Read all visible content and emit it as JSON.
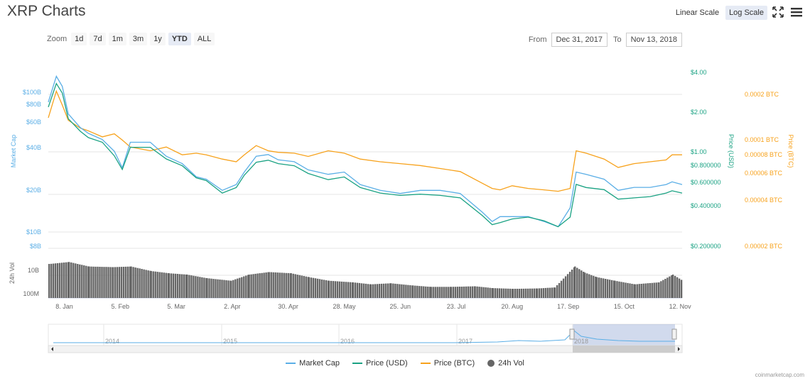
{
  "title": "XRP Charts",
  "scale": {
    "linear_label": "Linear Scale",
    "log_label": "Log Scale",
    "active": "log"
  },
  "icons": {
    "fullscreen": "expand-icon",
    "menu": "hamburger-menu-icon"
  },
  "zoom": {
    "label": "Zoom",
    "buttons": [
      "1d",
      "7d",
      "1m",
      "3m",
      "1y",
      "YTD",
      "ALL"
    ],
    "active": "YTD"
  },
  "range": {
    "from_label": "From",
    "from_value": "Dec 31, 2017",
    "to_label": "To",
    "to_value": "Nov 13, 2018"
  },
  "colors": {
    "market_cap": "#5aaee6",
    "price_usd": "#1aa283",
    "price_btc": "#f7a21c",
    "vol": "#666666"
  },
  "chart_data": {
    "type": "line",
    "scale": "log",
    "grid": true,
    "legend_position": "bottom",
    "x_labels": [
      "8. Jan",
      "5. Feb",
      "5. Mar",
      "2. Apr",
      "30. Apr",
      "28. May",
      "25. Jun",
      "23. Jul",
      "20. Aug",
      "17. Sep",
      "15. Oct",
      "12. Nov"
    ],
    "axes": {
      "market_cap": {
        "label": "Market Cap",
        "ticks": [
          "$100B",
          "$80B",
          "$60B",
          "$40B",
          "$20B",
          "$10B",
          "$8B"
        ]
      },
      "price_usd": {
        "label": "Price (USD)",
        "ticks": [
          "$4.00",
          "$2.00",
          "$1.00",
          "$0.800000",
          "$0.600000",
          "$0.400000",
          "$0.200000"
        ]
      },
      "price_btc": {
        "label": "Price (BTC)",
        "ticks": [
          "0.0002 BTC",
          "0.0001 BTC",
          "0.00008 BTC",
          "0.00006 BTC",
          "0.00004 BTC",
          "0.00002 BTC"
        ]
      },
      "volume": {
        "label": "24h Vol",
        "ticks": [
          "10B",
          "100M"
        ]
      }
    },
    "series": [
      {
        "name": "Market Cap",
        "key": "mcap",
        "axis": "market_cap",
        "unit": "USD billions",
        "x": [
          "2017-12-31",
          "2018-01-04",
          "2018-01-07",
          "2018-01-10",
          "2018-01-16",
          "2018-01-20",
          "2018-01-27",
          "2018-02-02",
          "2018-02-06",
          "2018-02-10",
          "2018-02-20",
          "2018-02-28",
          "2018-03-08",
          "2018-03-15",
          "2018-03-20",
          "2018-03-28",
          "2018-04-04",
          "2018-04-08",
          "2018-04-14",
          "2018-04-20",
          "2018-04-25",
          "2018-05-03",
          "2018-05-10",
          "2018-05-20",
          "2018-05-28",
          "2018-06-05",
          "2018-06-15",
          "2018-06-25",
          "2018-07-05",
          "2018-07-15",
          "2018-07-25",
          "2018-08-05",
          "2018-08-10",
          "2018-08-14",
          "2018-08-20",
          "2018-08-28",
          "2018-09-05",
          "2018-09-12",
          "2018-09-18",
          "2018-09-21",
          "2018-09-26",
          "2018-10-05",
          "2018-10-12",
          "2018-10-20",
          "2018-10-28",
          "2018-11-05",
          "2018-11-08",
          "2018-11-13"
        ],
        "y": [
          85,
          130,
          110,
          70,
          56,
          51,
          46,
          38,
          29,
          44,
          44,
          35,
          31,
          25,
          24,
          20,
          22,
          27,
          35,
          36,
          33,
          32,
          28,
          26,
          27,
          22,
          20,
          19,
          20,
          20,
          19,
          14,
          12,
          13,
          13,
          13,
          12,
          11,
          15,
          27,
          26,
          24,
          20,
          21,
          21,
          22,
          23,
          22
        ]
      },
      {
        "name": "Price (USD)",
        "key": "usd",
        "axis": "price_usd",
        "unit": "USD",
        "x": [
          "2017-12-31",
          "2018-01-04",
          "2018-01-07",
          "2018-01-10",
          "2018-01-16",
          "2018-01-20",
          "2018-01-27",
          "2018-02-02",
          "2018-02-06",
          "2018-02-10",
          "2018-02-20",
          "2018-02-28",
          "2018-03-08",
          "2018-03-15",
          "2018-03-20",
          "2018-03-28",
          "2018-04-04",
          "2018-04-08",
          "2018-04-14",
          "2018-04-20",
          "2018-04-25",
          "2018-05-03",
          "2018-05-10",
          "2018-05-20",
          "2018-05-28",
          "2018-06-05",
          "2018-06-15",
          "2018-06-25",
          "2018-07-05",
          "2018-07-15",
          "2018-07-25",
          "2018-08-05",
          "2018-08-10",
          "2018-08-14",
          "2018-08-20",
          "2018-08-28",
          "2018-09-05",
          "2018-09-12",
          "2018-09-18",
          "2018-09-21",
          "2018-09-26",
          "2018-10-05",
          "2018-10-12",
          "2018-10-20",
          "2018-10-28",
          "2018-11-05",
          "2018-11-08",
          "2018-11-13"
        ],
        "y": [
          2.2,
          3.3,
          2.8,
          1.8,
          1.45,
          1.3,
          1.2,
          0.95,
          0.75,
          1.1,
          1.1,
          0.9,
          0.8,
          0.65,
          0.62,
          0.5,
          0.55,
          0.68,
          0.85,
          0.88,
          0.83,
          0.8,
          0.7,
          0.63,
          0.66,
          0.55,
          0.5,
          0.48,
          0.49,
          0.48,
          0.46,
          0.34,
          0.29,
          0.3,
          0.32,
          0.33,
          0.31,
          0.28,
          0.33,
          0.58,
          0.55,
          0.53,
          0.45,
          0.46,
          0.47,
          0.5,
          0.52,
          0.5
        ]
      },
      {
        "name": "Price (BTC)",
        "key": "btc",
        "axis": "price_btc",
        "unit": "BTC",
        "x": [
          "2017-12-31",
          "2018-01-04",
          "2018-01-07",
          "2018-01-10",
          "2018-01-16",
          "2018-01-20",
          "2018-01-27",
          "2018-02-02",
          "2018-02-06",
          "2018-02-10",
          "2018-02-20",
          "2018-02-28",
          "2018-03-08",
          "2018-03-15",
          "2018-03-20",
          "2018-03-28",
          "2018-04-04",
          "2018-04-08",
          "2018-04-14",
          "2018-04-20",
          "2018-04-25",
          "2018-05-03",
          "2018-05-10",
          "2018-05-20",
          "2018-05-28",
          "2018-06-05",
          "2018-06-15",
          "2018-06-25",
          "2018-07-05",
          "2018-07-15",
          "2018-07-25",
          "2018-08-05",
          "2018-08-10",
          "2018-08-14",
          "2018-08-20",
          "2018-08-28",
          "2018-09-05",
          "2018-09-12",
          "2018-09-18",
          "2018-09-21",
          "2018-09-26",
          "2018-10-05",
          "2018-10-12",
          "2018-10-20",
          "2018-10-28",
          "2018-11-05",
          "2018-11-08",
          "2018-11-13"
        ],
        "y": [
          0.00014,
          0.00021,
          0.00017,
          0.000135,
          0.00012,
          0.000115,
          0.000105,
          0.00011,
          0.0001,
          9e-05,
          8.5e-05,
          9e-05,
          8e-05,
          8.2e-05,
          8e-05,
          7.5e-05,
          7.2e-05,
          8e-05,
          9.2e-05,
          8.5e-05,
          8.3e-05,
          8.2e-05,
          7.8e-05,
          8.5e-05,
          8.2e-05,
          7.5e-05,
          7.2e-05,
          7e-05,
          6.8e-05,
          6.5e-05,
          6.2e-05,
          5.2e-05,
          4.8e-05,
          4.7e-05,
          5e-05,
          4.8e-05,
          4.7e-05,
          4.6e-05,
          4.8e-05,
          8.5e-05,
          8.2e-05,
          7.5e-05,
          6.6e-05,
          7e-05,
          7.2e-05,
          7.4e-05,
          8e-05,
          8e-05
        ]
      },
      {
        "name": "24h Vol",
        "key": "vol",
        "axis": "volume",
        "unit": "USD",
        "x": [
          "2017-12-31",
          "2018-01-10",
          "2018-01-20",
          "2018-02-01",
          "2018-02-10",
          "2018-02-20",
          "2018-03-01",
          "2018-03-10",
          "2018-03-20",
          "2018-04-01",
          "2018-04-10",
          "2018-04-20",
          "2018-05-01",
          "2018-05-10",
          "2018-05-20",
          "2018-06-01",
          "2018-06-10",
          "2018-06-20",
          "2018-07-01",
          "2018-07-10",
          "2018-07-20",
          "2018-08-01",
          "2018-08-10",
          "2018-08-20",
          "2018-09-01",
          "2018-09-10",
          "2018-09-20",
          "2018-09-25",
          "2018-10-01",
          "2018-10-10",
          "2018-10-20",
          "2018-11-01",
          "2018-11-08",
          "2018-11-13"
        ],
        "y": [
          4000000000.0,
          5000000000.0,
          3000000000.0,
          2800000000.0,
          3000000000.0,
          1800000000.0,
          1400000000.0,
          1200000000.0,
          800000000.0,
          600000000.0,
          1200000000.0,
          1600000000.0,
          1400000000.0,
          900000000.0,
          600000000.0,
          500000000.0,
          400000000.0,
          450000000.0,
          350000000.0,
          300000000.0,
          300000000.0,
          320000000.0,
          260000000.0,
          240000000.0,
          250000000.0,
          280000000.0,
          3000000000.0,
          1500000000.0,
          900000000.0,
          600000000.0,
          400000000.0,
          500000000.0,
          1200000000.0,
          600000000.0
        ]
      }
    ],
    "navigator": {
      "year_labels": [
        "2014",
        "2015",
        "2016",
        "2017",
        "2018"
      ]
    }
  },
  "legend": [
    {
      "label": "Market Cap",
      "key": "mcap"
    },
    {
      "label": "Price (USD)",
      "key": "usd"
    },
    {
      "label": "Price (BTC)",
      "key": "btc"
    },
    {
      "label": "24h Vol",
      "key": "vol"
    }
  ],
  "credit": "coinmarketcap.com"
}
